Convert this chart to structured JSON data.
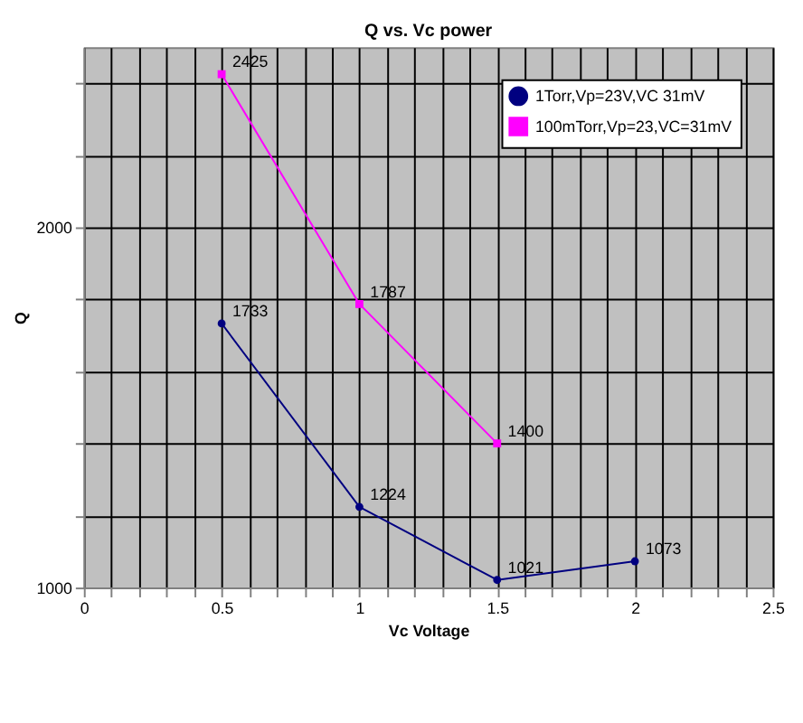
{
  "chart_data": {
    "type": "line",
    "title": "Q vs. Vc power",
    "xlabel": "Vc Voltage",
    "ylabel": "Q",
    "series": [
      {
        "name": "1Torr,Vp=23V,VC 31mV",
        "color": "#000080",
        "marker": "circle",
        "x": [
          0.5,
          1,
          1.5,
          2
        ],
        "values": [
          1733,
          1224,
          1021,
          1073
        ]
      },
      {
        "name": "100mTorr,Vp=23,VC=31mV",
        "color": "#ff00ff",
        "marker": "square",
        "x": [
          0.5,
          1,
          1.5
        ],
        "values": [
          2425,
          1787,
          1400
        ]
      }
    ],
    "xlim": [
      0,
      2.5
    ],
    "xticks": [
      0,
      {
        "value": 0.1,
        "label": null
      },
      {
        "value": 0.2,
        "label": null
      },
      {
        "value": 0.3,
        "label": null
      },
      {
        "value": 0.4,
        "label": null
      },
      0.5,
      {
        "value": 0.6,
        "label": null
      },
      {
        "value": 0.7,
        "label": null
      },
      {
        "value": 0.8,
        "label": null
      },
      {
        "value": 0.9,
        "label": null
      },
      1,
      {
        "value": 1.1,
        "label": null
      },
      {
        "value": 1.2,
        "label": null
      },
      {
        "value": 1.3,
        "label": null
      },
      {
        "value": 1.4,
        "label": null
      },
      1.5,
      {
        "value": 1.6,
        "label": null
      },
      {
        "value": 1.7,
        "label": null
      },
      {
        "value": 1.8,
        "label": null
      },
      {
        "value": 1.9,
        "label": null
      },
      2,
      {
        "value": 2.1,
        "label": null
      },
      {
        "value": 2.2,
        "label": null
      },
      {
        "value": 2.3,
        "label": null
      },
      {
        "value": 2.4,
        "label": null
      },
      2.5
    ],
    "ylim": [
      1000,
      2500
    ],
    "yticks": [
      1000,
      {
        "value": 1200,
        "label": null
      },
      {
        "value": 1400,
        "label": null
      },
      {
        "value": 1600,
        "label": null
      },
      {
        "value": 1800,
        "label": null
      },
      2000,
      {
        "value": 2200,
        "label": null
      },
      {
        "value": 2400,
        "label": null
      }
    ],
    "grid": true,
    "legend": "top right",
    "data_labels": true
  }
}
